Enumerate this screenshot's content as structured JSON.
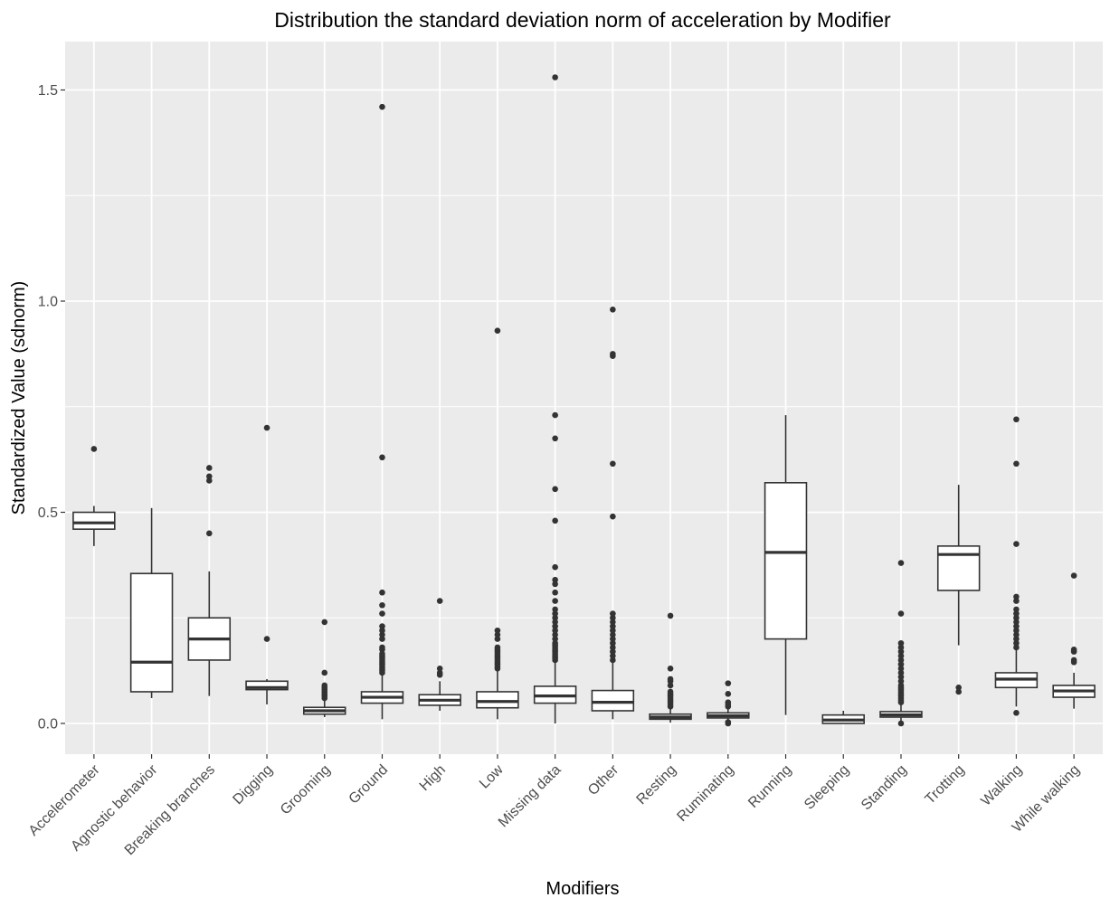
{
  "chart_data": {
    "type": "boxplot",
    "title": "Distribution the standard deviation norm of acceleration by Modifier",
    "xlabel": "Modifiers",
    "ylabel": "Standardized Value (sdnorm)",
    "ylim": [
      -0.075,
      1.61
    ],
    "yticks": [
      0.0,
      0.5,
      1.0,
      1.5
    ],
    "ytick_labels": [
      "0.0",
      "0.5",
      "1.0",
      "1.5"
    ],
    "grid": true,
    "legend": "none",
    "colors": {
      "panel": "#ebebeb",
      "grid": "#ffffff",
      "box_fill": "#ffffff",
      "box_line": "#333333",
      "text": "#4d4d4d"
    },
    "categories": [
      "Accelerometer",
      "Agnostic behavior",
      "Breaking branches",
      "Digging",
      "Grooming",
      "Ground",
      "High",
      "Low",
      "Missing data",
      "Other",
      "Resting",
      "Ruminating",
      "Running",
      "Sleeping",
      "Standing",
      "Trotting",
      "Walking",
      "While walking"
    ],
    "boxes": [
      {
        "whisker_low": 0.42,
        "q1": 0.46,
        "median": 0.475,
        "q3": 0.5,
        "whisker_high": 0.515,
        "outliers": [
          0.65
        ]
      },
      {
        "whisker_low": 0.06,
        "q1": 0.075,
        "median": 0.145,
        "q3": 0.355,
        "whisker_high": 0.51,
        "outliers": []
      },
      {
        "whisker_low": 0.065,
        "q1": 0.15,
        "median": 0.2,
        "q3": 0.25,
        "whisker_high": 0.36,
        "outliers": [
          0.45,
          0.575,
          0.585,
          0.605
        ]
      },
      {
        "whisker_low": 0.045,
        "q1": 0.08,
        "median": 0.085,
        "q3": 0.1,
        "whisker_high": 0.105,
        "outliers": [
          0.2,
          0.7
        ]
      },
      {
        "whisker_low": 0.015,
        "q1": 0.022,
        "median": 0.03,
        "q3": 0.038,
        "whisker_high": 0.055,
        "outliers": [
          0.06,
          0.065,
          0.07,
          0.075,
          0.08,
          0.085,
          0.09,
          0.12,
          0.24
        ]
      },
      {
        "whisker_low": 0.01,
        "q1": 0.048,
        "median": 0.062,
        "q3": 0.075,
        "whisker_high": 0.115,
        "outliers": [
          0.12,
          0.125,
          0.13,
          0.135,
          0.14,
          0.145,
          0.15,
          0.155,
          0.16,
          0.165,
          0.175,
          0.18,
          0.2,
          0.21,
          0.22,
          0.23,
          0.26,
          0.28,
          0.31,
          0.63,
          1.46
        ]
      },
      {
        "whisker_low": 0.03,
        "q1": 0.043,
        "median": 0.055,
        "q3": 0.068,
        "whisker_high": 0.1,
        "outliers": [
          0.115,
          0.12,
          0.13,
          0.29
        ]
      },
      {
        "whisker_low": 0.01,
        "q1": 0.037,
        "median": 0.052,
        "q3": 0.075,
        "whisker_high": 0.125,
        "outliers": [
          0.13,
          0.135,
          0.14,
          0.145,
          0.15,
          0.155,
          0.16,
          0.165,
          0.17,
          0.175,
          0.18,
          0.2,
          0.21,
          0.22,
          0.93
        ]
      },
      {
        "whisker_low": 0.0,
        "q1": 0.048,
        "median": 0.065,
        "q3": 0.088,
        "whisker_high": 0.145,
        "outliers": [
          0.15,
          0.155,
          0.16,
          0.165,
          0.17,
          0.175,
          0.18,
          0.185,
          0.19,
          0.2,
          0.21,
          0.22,
          0.23,
          0.24,
          0.25,
          0.26,
          0.27,
          0.29,
          0.31,
          0.33,
          0.34,
          0.37,
          0.48,
          0.555,
          0.675,
          0.73,
          1.53
        ]
      },
      {
        "whisker_low": 0.01,
        "q1": 0.03,
        "median": 0.05,
        "q3": 0.078,
        "whisker_high": 0.145,
        "outliers": [
          0.15,
          0.16,
          0.17,
          0.18,
          0.19,
          0.2,
          0.21,
          0.22,
          0.23,
          0.24,
          0.25,
          0.26,
          0.49,
          0.615,
          0.87,
          0.875,
          0.98
        ]
      },
      {
        "whisker_low": 0.002,
        "q1": 0.01,
        "median": 0.015,
        "q3": 0.022,
        "whisker_high": 0.035,
        "outliers": [
          0.04,
          0.045,
          0.05,
          0.055,
          0.06,
          0.065,
          0.07,
          0.075,
          0.09,
          0.1,
          0.105,
          0.13,
          0.255
        ]
      },
      {
        "whisker_low": 0.003,
        "q1": 0.013,
        "median": 0.018,
        "q3": 0.025,
        "whisker_high": 0.035,
        "outliers": [
          0.0,
          0.003,
          0.04,
          0.045,
          0.05,
          0.07,
          0.095
        ]
      },
      {
        "whisker_low": 0.02,
        "q1": 0.2,
        "median": 0.405,
        "q3": 0.57,
        "whisker_high": 0.73,
        "outliers": []
      },
      {
        "whisker_low": 0.0,
        "q1": 0.0,
        "median": 0.008,
        "q3": 0.02,
        "whisker_high": 0.03,
        "outliers": []
      },
      {
        "whisker_low": 0.0,
        "q1": 0.015,
        "median": 0.02,
        "q3": 0.028,
        "whisker_high": 0.045,
        "outliers": [
          0.0,
          0.05,
          0.055,
          0.06,
          0.065,
          0.07,
          0.075,
          0.08,
          0.085,
          0.09,
          0.1,
          0.11,
          0.12,
          0.13,
          0.14,
          0.15,
          0.16,
          0.17,
          0.18,
          0.19,
          0.26,
          0.38
        ]
      },
      {
        "whisker_low": 0.185,
        "q1": 0.315,
        "median": 0.4,
        "q3": 0.42,
        "whisker_high": 0.565,
        "outliers": [
          0.075,
          0.085
        ]
      },
      {
        "whisker_low": 0.04,
        "q1": 0.085,
        "median": 0.105,
        "q3": 0.12,
        "whisker_high": 0.175,
        "outliers": [
          0.025,
          0.18,
          0.19,
          0.2,
          0.21,
          0.22,
          0.23,
          0.24,
          0.25,
          0.26,
          0.27,
          0.29,
          0.3,
          0.425,
          0.615,
          0.72
        ]
      },
      {
        "whisker_low": 0.035,
        "q1": 0.062,
        "median": 0.077,
        "q3": 0.09,
        "whisker_high": 0.12,
        "outliers": [
          0.145,
          0.15,
          0.17,
          0.175,
          0.35
        ]
      }
    ]
  }
}
